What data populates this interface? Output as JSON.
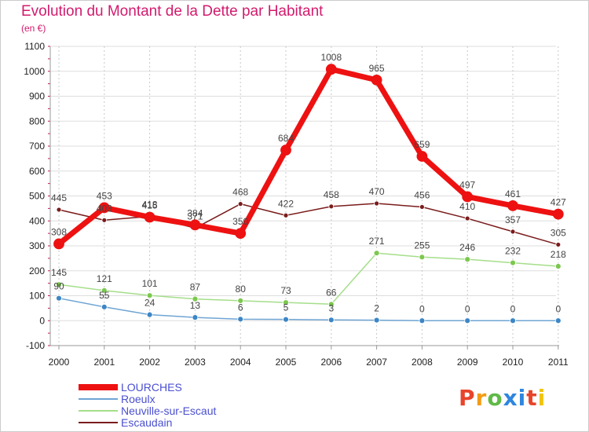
{
  "header": {
    "title": "Evolution du Montant de la Dette par Habitant",
    "subtitle": "(en €)"
  },
  "logo": {
    "text": "Proxiti",
    "colors": [
      "#e8442b",
      "#f39c12",
      "#5fba46",
      "#2e86de",
      "#2e86de",
      "#e8442b",
      "#f1c40f"
    ]
  },
  "chart_data": {
    "type": "line",
    "title": "Evolution du Montant de la Dette par Habitant",
    "ylabel": "(en €)",
    "xlabel": "",
    "ylim": [
      -100,
      1100
    ],
    "yticks": [
      -100,
      0,
      100,
      200,
      300,
      400,
      500,
      600,
      700,
      800,
      900,
      1000,
      1100
    ],
    "categories": [
      "2000",
      "2001",
      "2002",
      "2003",
      "2004",
      "2005",
      "2006",
      "2007",
      "2008",
      "2009",
      "2010",
      "2011"
    ],
    "legend_position": "bottom-left",
    "series": [
      {
        "name": "Escaudain",
        "color": "#7a1c1c",
        "marker": "#7a1c1c",
        "width": 1.5,
        "radius": 3,
        "values": [
          445,
          403,
          418,
          371,
          468,
          422,
          458,
          470,
          456,
          410,
          357,
          305
        ],
        "labels": [
          "445",
          "403",
          "418",
          "371",
          "468",
          "422",
          "458",
          "470",
          "456",
          "410",
          "357",
          "305"
        ]
      },
      {
        "name": "Neuville-sur-Escaut",
        "color": "#a5de8a",
        "marker": "#7cc84e",
        "width": 1.5,
        "radius": 3.5,
        "values": [
          145,
          121,
          101,
          87,
          80,
          73,
          66,
          271,
          255,
          246,
          232,
          218
        ],
        "labels": [
          "145",
          "121",
          "101",
          "87",
          "80",
          "73",
          "66",
          "271",
          "255",
          "246",
          "232",
          "218"
        ]
      },
      {
        "name": "Roeulx",
        "color": "#6fa5d4",
        "marker": "#3c86c6",
        "width": 1.5,
        "radius": 3.5,
        "values": [
          90,
          55,
          24,
          13,
          6,
          5,
          3,
          2,
          0,
          0,
          0,
          0
        ],
        "labels": [
          "90",
          "55",
          "24",
          "13",
          "6",
          "5",
          "3",
          "2",
          "0",
          "0",
          "0",
          "0"
        ]
      },
      {
        "name": "LOURCHES",
        "color": "#ee1111",
        "marker": "#ee1111",
        "width": 7,
        "radius": 6.5,
        "values": [
          308,
          453,
          415,
          384,
          350,
          684,
          1008,
          965,
          659,
          497,
          461,
          427
        ],
        "labels": [
          "308",
          "453",
          "415",
          "384",
          "350",
          "684",
          "1008",
          "965",
          "659",
          "497",
          "461",
          "427"
        ]
      }
    ],
    "legend_order": [
      "LOURCHES",
      "Roeulx",
      "Neuville-sur-Escaut",
      "Escaudain"
    ]
  }
}
